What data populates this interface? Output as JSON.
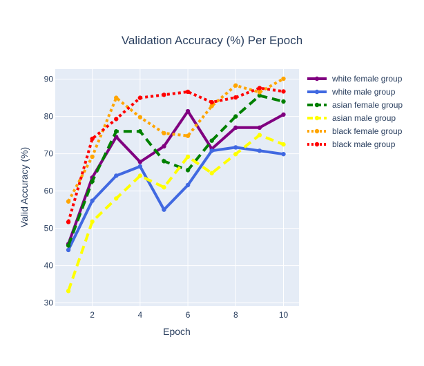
{
  "chart_data": {
    "type": "line",
    "title": "Validation Accuracy (%) Per Epoch",
    "xlabel": "Epoch",
    "ylabel": "Valid Accuracy (%)",
    "x": [
      1,
      2,
      3,
      4,
      5,
      6,
      7,
      8,
      9,
      10
    ],
    "xticks": [
      2,
      4,
      6,
      8,
      10
    ],
    "yticks": [
      30,
      40,
      50,
      60,
      70,
      80,
      90
    ],
    "xlim": [
      0.45,
      10.65
    ],
    "ylim": [
      29.2,
      92.7
    ],
    "grid": true,
    "legend_position": "top-right",
    "plot_bg": "#e5ecf6",
    "series": [
      {
        "name": "white female group",
        "color": "#800080",
        "dash": "solid",
        "values": [
          45.8,
          63.6,
          74.5,
          67.8,
          72.0,
          81.4,
          71.3,
          77.0,
          77.0,
          80.5
        ]
      },
      {
        "name": "white male group",
        "color": "#4169e1",
        "dash": "solid",
        "values": [
          44.2,
          57.4,
          64.1,
          66.6,
          55.0,
          61.6,
          70.8,
          71.7,
          70.8,
          69.9
        ]
      },
      {
        "name": "asian female group",
        "color": "#008000",
        "dash": "dash",
        "values": [
          45.4,
          62.6,
          76.0,
          76.0,
          68.0,
          65.6,
          73.5,
          80.0,
          85.6,
          84.0
        ]
      },
      {
        "name": "asian male group",
        "color": "#ffff00",
        "dash": "dash",
        "values": [
          33.2,
          51.8,
          58.0,
          64.1,
          61.0,
          69.2,
          64.8,
          69.9,
          75.0,
          72.5
        ]
      },
      {
        "name": "black female group",
        "color": "#ffa500",
        "dash": "dot",
        "values": [
          57.2,
          69.2,
          85.0,
          79.8,
          75.5,
          74.8,
          82.8,
          88.3,
          86.5,
          90.1
        ]
      },
      {
        "name": "black male group",
        "color": "#ff0000",
        "dash": "dot",
        "values": [
          51.7,
          74.0,
          79.3,
          85.0,
          85.8,
          86.6,
          83.8,
          85.1,
          87.6,
          86.7
        ]
      }
    ]
  }
}
